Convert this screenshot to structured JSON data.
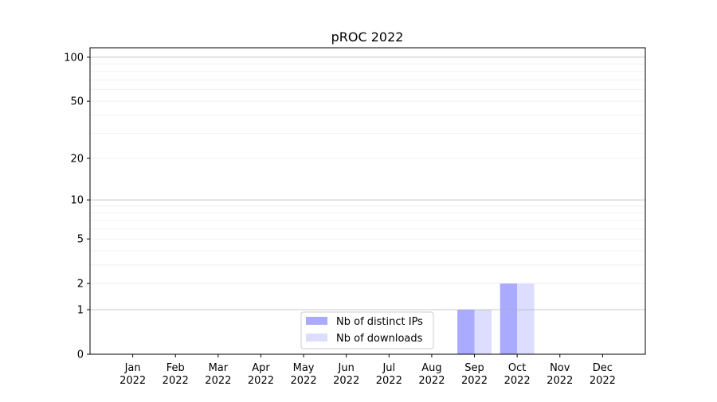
{
  "chart_data": {
    "type": "bar",
    "title": "pROC 2022",
    "xlabel": "",
    "ylabel": "",
    "yscale": "log(1+y)",
    "ylim": [
      0,
      116
    ],
    "yticks": [
      0,
      1,
      2,
      5,
      10,
      20,
      50,
      100
    ],
    "ytick_labels": [
      "0",
      "1",
      "2",
      "5",
      "10",
      "20",
      "50",
      "100"
    ],
    "grid": true,
    "legend_position": "lower-center",
    "categories": [
      "Jan\n2022",
      "Feb\n2022",
      "Mar\n2022",
      "Apr\n2022",
      "May\n2022",
      "Jun\n2022",
      "Jul\n2022",
      "Aug\n2022",
      "Sep\n2022",
      "Oct\n2022",
      "Nov\n2022",
      "Dec\n2022"
    ],
    "series": [
      {
        "name": "Nb of distinct IPs",
        "color": "#aaaaff",
        "values": [
          0,
          0,
          0,
          0,
          0,
          0,
          0,
          0,
          1,
          2,
          0,
          0
        ]
      },
      {
        "name": "Nb of downloads",
        "color": "#ddddff",
        "values": [
          0,
          0,
          0,
          0,
          0,
          0,
          0,
          0,
          1,
          2,
          0,
          0
        ]
      }
    ]
  }
}
